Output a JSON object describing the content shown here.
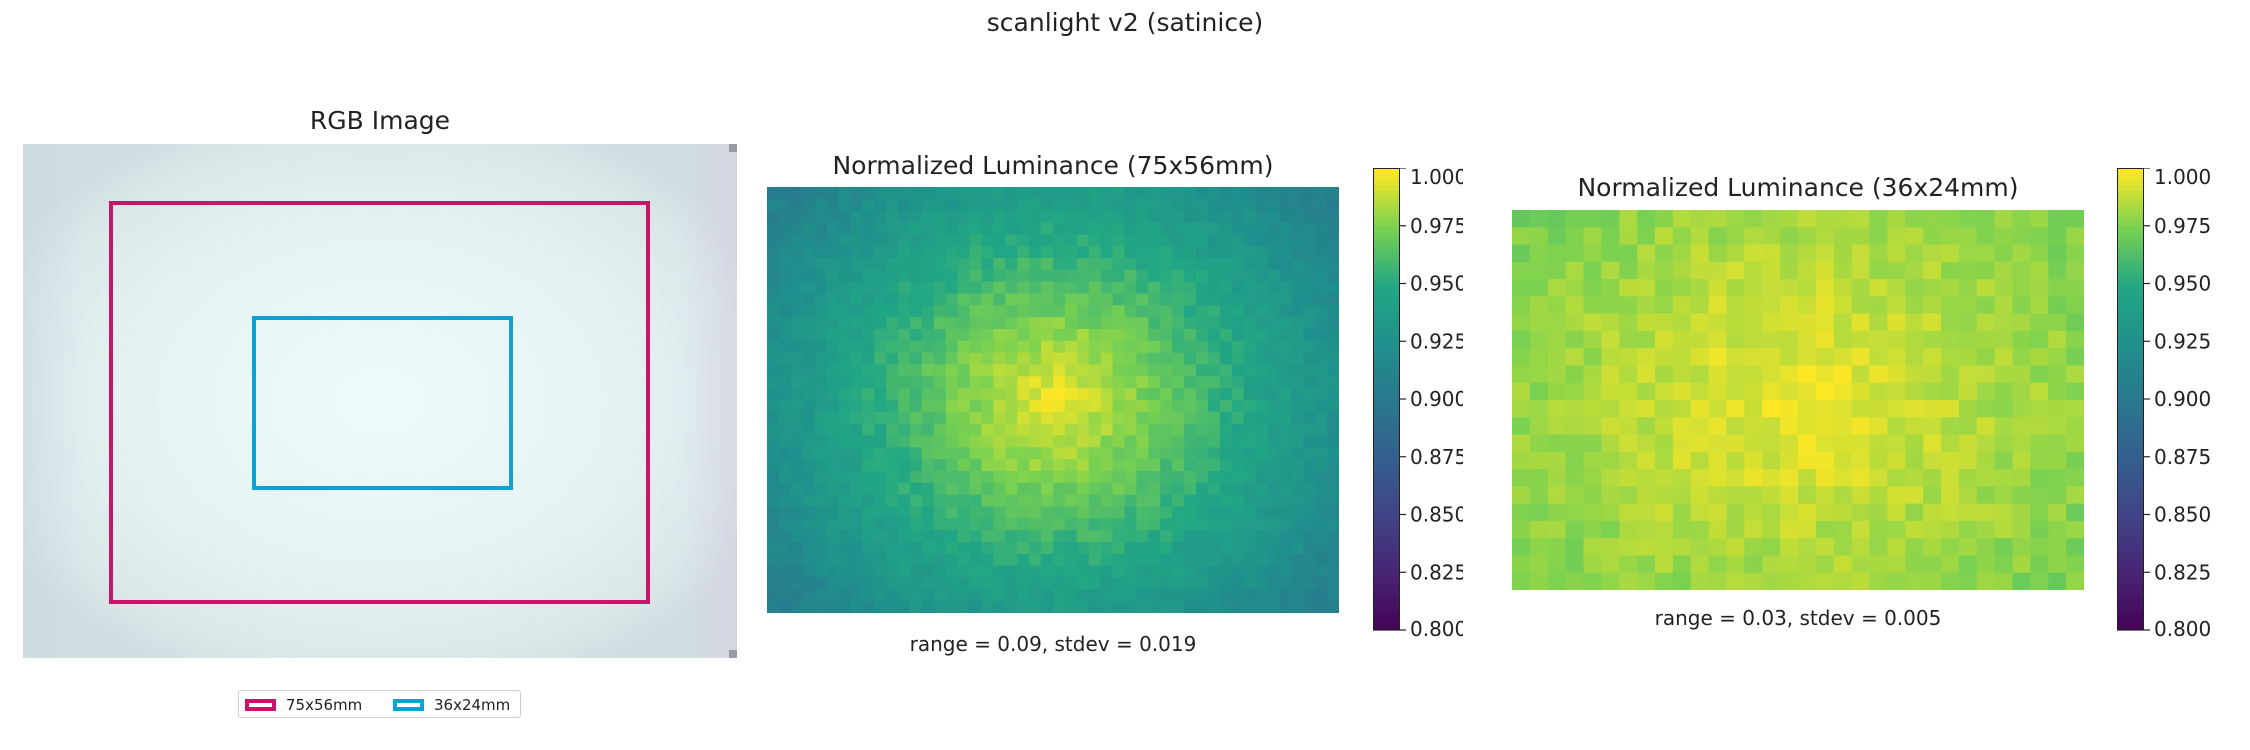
{
  "figure_title": "scanlight v2 (satinice)",
  "colors": {
    "magenta_box": "#c8146a",
    "cyan_box": "#11a0d4",
    "colormap": "viridis"
  },
  "panels": {
    "rgb": {
      "title": "RGB Image"
    },
    "lum75": {
      "title": "Normalized Luminance (75x56mm)",
      "caption": "range = 0.09, stdev = 0.019"
    },
    "lum36": {
      "title": "Normalized Luminance (36x24mm)",
      "caption": "range = 0.03, stdev = 0.005"
    }
  },
  "legend": [
    {
      "label": "75x56mm",
      "color": "#c8146a"
    },
    {
      "label": "36x24mm",
      "color": "#11a0d4"
    }
  ],
  "colorbar": {
    "min": 0.8,
    "max": 1.0,
    "ticks": [
      "1.000",
      "0.975",
      "0.950",
      "0.925",
      "0.900",
      "0.875",
      "0.850",
      "0.825",
      "0.800"
    ]
  },
  "chart_data": [
    {
      "type": "heatmap",
      "title": "Normalized Luminance (75x56mm)",
      "annotation": "range = 0.09, stdev = 0.019",
      "clim": [
        0.8,
        1.0
      ],
      "model": {
        "peak": 0.998,
        "edge": 0.91
      }
    },
    {
      "type": "heatmap",
      "title": "Normalized Luminance (36x24mm)",
      "annotation": "range = 0.03, stdev = 0.005",
      "clim": [
        0.8,
        1.0
      ],
      "model": {
        "peak": 0.998,
        "edge": 0.975
      }
    }
  ]
}
